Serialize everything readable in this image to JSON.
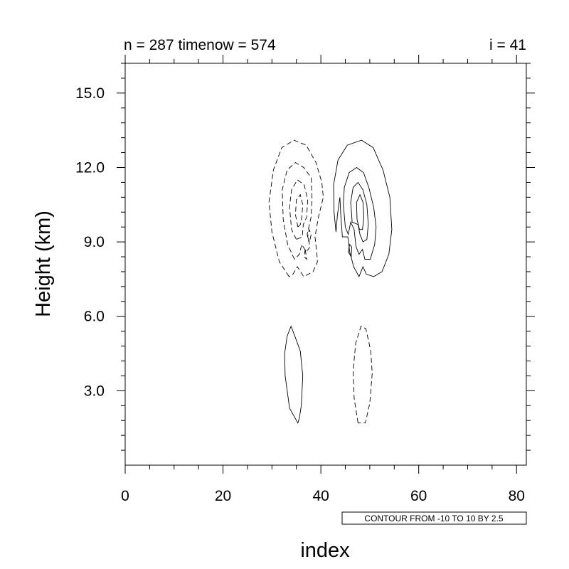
{
  "chart_data": {
    "type": "contour",
    "title_left": "n = 287 timenow = 574",
    "title_right": "i = 41",
    "xlabel": "index",
    "ylabel": "Height (km)",
    "xlim": [
      0,
      82
    ],
    "ylim": [
      0,
      16.2
    ],
    "x_ticks": [
      0,
      20,
      40,
      60,
      80
    ],
    "x_tick_labels": [
      "0",
      "20",
      "40",
      "60",
      "80"
    ],
    "y_ticks": [
      3,
      6,
      9,
      12,
      15
    ],
    "y_tick_labels": [
      "3.0",
      "6.0",
      "9.0",
      "12.0",
      "15.0"
    ],
    "info_label": "CONTOUR FROM -10 TO 10 BY 2.5",
    "contour_levels": {
      "min": -10,
      "max": 10,
      "step": 2.5
    },
    "contours": [
      {
        "level": -2.5,
        "dashed": true,
        "points": [
          [
            33.5,
            7.6
          ],
          [
            31.5,
            8.2
          ],
          [
            30,
            9.4
          ],
          [
            29.4,
            10.6
          ],
          [
            30.3,
            11.9
          ],
          [
            32,
            12.8
          ],
          [
            34.5,
            13.1
          ],
          [
            37,
            12.9
          ],
          [
            39,
            12.2
          ],
          [
            40.2,
            11.4
          ],
          [
            40.5,
            10.8
          ],
          [
            39.5,
            10
          ],
          [
            38.8,
            9.2
          ],
          [
            39.2,
            8.5
          ],
          [
            39.3,
            8.2
          ],
          [
            38.4,
            7.8
          ],
          [
            36.5,
            7.6
          ],
          [
            35.2,
            8
          ],
          [
            34.3,
            7.7
          ]
        ]
      },
      {
        "level": -5.0,
        "dashed": true,
        "points": [
          [
            34.6,
            8.3
          ],
          [
            33.2,
            8.9
          ],
          [
            32.3,
            9.9
          ],
          [
            32.1,
            11.1
          ],
          [
            33.1,
            11.9
          ],
          [
            34.8,
            12.2
          ],
          [
            36.5,
            12
          ],
          [
            38,
            11.6
          ],
          [
            38.2,
            10.8
          ],
          [
            38,
            10
          ],
          [
            37.2,
            9.3
          ],
          [
            37.8,
            8.8
          ],
          [
            37,
            8.6
          ],
          [
            36.1,
            8.9
          ],
          [
            35.6,
            8.5
          ]
        ]
      },
      {
        "level": -7.5,
        "dashed": true,
        "points": [
          [
            35,
            9.1
          ],
          [
            34,
            9.5
          ],
          [
            33.6,
            10.4
          ],
          [
            34,
            11.1
          ],
          [
            35.2,
            11.5
          ],
          [
            36.6,
            11.3
          ],
          [
            37.3,
            10.7
          ],
          [
            37.1,
            10
          ],
          [
            36.4,
            9.7
          ],
          [
            36.2,
            9.2
          ]
        ]
      },
      {
        "level": -10.0,
        "dashed": true,
        "points": [
          [
            35.3,
            9.6
          ],
          [
            34.8,
            10.1
          ],
          [
            35,
            10.7
          ],
          [
            35.8,
            10.9
          ],
          [
            36.3,
            10.5
          ],
          [
            36.1,
            10
          ],
          [
            35.8,
            9.7
          ]
        ]
      },
      {
        "level": -2.5,
        "dashed": true,
        "points": [
          [
            36.8,
            8.7
          ],
          [
            36.6,
            8.4
          ],
          [
            37.1,
            8.3
          ]
        ]
      },
      {
        "level": -2.5,
        "dashed": true,
        "points": [
          [
            37.3,
            9.2
          ],
          [
            37.7,
            9.0
          ],
          [
            38,
            9.3
          ],
          [
            37.6,
            9.5
          ]
        ]
      },
      {
        "level": 2.5,
        "dashed": false,
        "points": [
          [
            43.1,
            9.4
          ],
          [
            42.7,
            10.2
          ],
          [
            42.6,
            11.3
          ],
          [
            43.5,
            12.3
          ],
          [
            45.4,
            12.9
          ],
          [
            48.3,
            13.1
          ],
          [
            50.7,
            12.8
          ],
          [
            52.7,
            11.9
          ],
          [
            54.1,
            10.8
          ],
          [
            54.5,
            9.5
          ],
          [
            53.9,
            8.5
          ],
          [
            52.5,
            7.8
          ],
          [
            50.8,
            7.6
          ],
          [
            49.3,
            7.7
          ],
          [
            48.6,
            8
          ],
          [
            47.8,
            7.6
          ],
          [
            46.7,
            8
          ],
          [
            45.9,
            8.6
          ],
          [
            45.5,
            9.2
          ],
          [
            44.4,
            9.2
          ],
          [
            44.1,
            10
          ],
          [
            43.9,
            10.8
          ],
          [
            43.4,
            10.1
          ]
        ]
      },
      {
        "level": 5.0,
        "dashed": false,
        "points": [
          [
            45,
            9.6
          ],
          [
            44.6,
            10.5
          ],
          [
            44.8,
            11.2
          ],
          [
            45.8,
            11.8
          ],
          [
            47.3,
            12
          ],
          [
            48.7,
            11.8
          ],
          [
            49.8,
            11.2
          ],
          [
            50.8,
            10.4
          ],
          [
            51.3,
            9.6
          ],
          [
            51,
            8.9
          ],
          [
            50.1,
            8.3
          ],
          [
            49,
            8.3
          ],
          [
            48.5,
            8.7
          ],
          [
            47.8,
            8.5
          ],
          [
            47.2,
            8.8
          ],
          [
            46.8,
            9.5
          ],
          [
            46.1,
            9.8
          ],
          [
            45.6,
            9.3
          ]
        ]
      },
      {
        "level": 7.5,
        "dashed": false,
        "points": [
          [
            46.4,
            9.8
          ],
          [
            46.1,
            10.6
          ],
          [
            46.6,
            11.2
          ],
          [
            47.6,
            11.4
          ],
          [
            48.6,
            11.1
          ],
          [
            49.4,
            10.5
          ],
          [
            49.7,
            9.7
          ],
          [
            49.4,
            9.1
          ],
          [
            48.6,
            9
          ],
          [
            48,
            9.3
          ],
          [
            47.6,
            9.7
          ]
        ]
      },
      {
        "level": 10.0,
        "dashed": false,
        "points": [
          [
            47.4,
            9.9
          ],
          [
            47.3,
            10.6
          ],
          [
            48,
            10.9
          ],
          [
            48.6,
            10.6
          ],
          [
            48.8,
            10
          ],
          [
            48.5,
            9.5
          ],
          [
            47.9,
            9.5
          ]
        ]
      },
      {
        "level": 2.5,
        "dashed": false,
        "points": [
          [
            45.6,
            8.6
          ],
          [
            45.9,
            8.9
          ],
          [
            46.3,
            8.8
          ],
          [
            46.2,
            8.4
          ]
        ]
      },
      {
        "level": 2.5,
        "dashed": false,
        "points": [
          [
            35.3,
            1.7
          ],
          [
            33.6,
            2.3
          ],
          [
            32.7,
            3.6
          ],
          [
            32.6,
            4.5
          ],
          [
            33.1,
            5.2
          ],
          [
            33.9,
            5.6
          ],
          [
            34.5,
            5.3
          ],
          [
            35.8,
            4.6
          ],
          [
            36.3,
            3.6
          ],
          [
            36,
            2.4
          ],
          [
            35.6,
            1.9
          ]
        ]
      },
      {
        "level": -2.5,
        "dashed": true,
        "points": [
          [
            47.6,
            1.7
          ],
          [
            46.8,
            2.7
          ],
          [
            46.6,
            3.8
          ],
          [
            47.1,
            4.9
          ],
          [
            48.2,
            5.6
          ],
          [
            49.2,
            5.5
          ],
          [
            50.2,
            4.6
          ],
          [
            50.5,
            3.7
          ],
          [
            50,
            2.5
          ],
          [
            49.1,
            1.7
          ]
        ]
      }
    ]
  }
}
